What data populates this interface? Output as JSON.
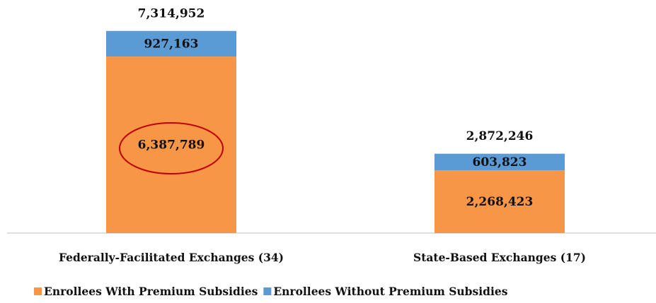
{
  "chart_data": {
    "type": "stacked_bar",
    "categories": [
      "Federally-Facilitated Exchanges (34)",
      "State-Based Exchanges (17)"
    ],
    "series": [
      {
        "name": "Enrollees With Premium Subsidies",
        "color": "#f79646",
        "values": [
          6387789,
          2268423
        ],
        "value_labels": [
          "6,387,789",
          "2,268,423"
        ]
      },
      {
        "name": "Enrollees Without Premium Subsidies",
        "color": "#5b9bd5",
        "values": [
          927163,
          603823
        ],
        "value_labels": [
          "927,163",
          "603,823"
        ]
      }
    ],
    "totals": [
      7314952,
      2872246
    ],
    "total_labels": [
      "7,314,952",
      "2,872,246"
    ],
    "ylim": [
      0,
      8000000
    ],
    "legend": "bottom"
  }
}
